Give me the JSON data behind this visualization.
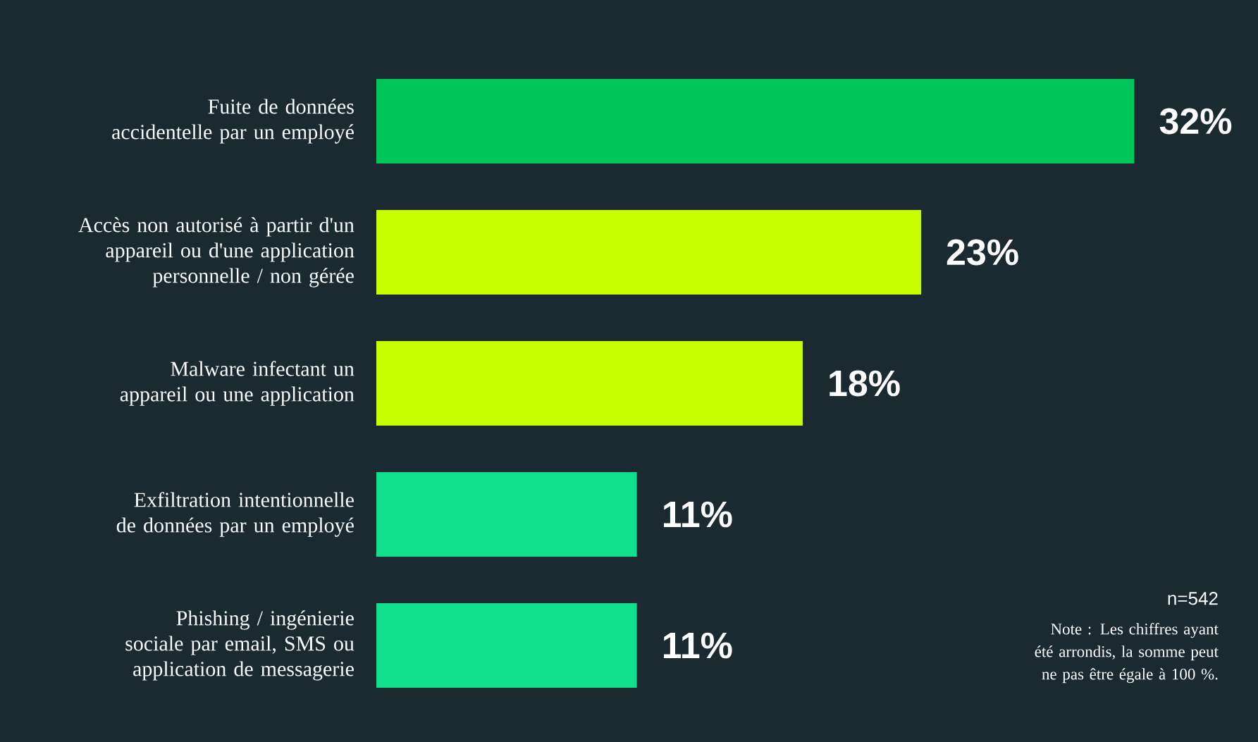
{
  "chart_data": {
    "type": "bar",
    "orientation": "horizontal",
    "categories": [
      "Fuite de données accidentelle par un employé",
      "Accès non autorisé à partir d'un appareil ou d'une application personnelle / non gérée",
      "Malware infectant un appareil ou une application",
      "Exfiltration intentionnelle de données par un employé",
      "Phishing / ingénierie sociale par email, SMS ou application de messagerie"
    ],
    "values": [
      32,
      23,
      18,
      11,
      11
    ],
    "value_labels": [
      "32%",
      "23%",
      "18%",
      "11%",
      "11%"
    ],
    "colors": [
      "#00c65e",
      "#c8ff00",
      "#c8ff00",
      "#10e08c",
      "#10e08c"
    ],
    "annotations": [
      "n=542",
      "Note : Les chiffres ayant été arrondis, la somme peut ne pas être égale à 100 %."
    ]
  }
}
